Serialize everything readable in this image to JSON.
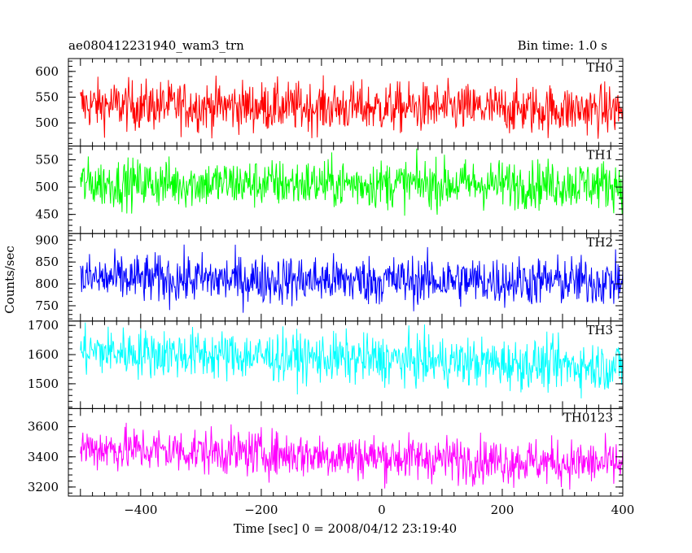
{
  "chart_data": {
    "type": "line",
    "title": "ae080412231940_wam3_trn",
    "bin_time_label": "Bin time: 1.0 s",
    "xlabel": "Time [sec] 0 = 2008/04/12 23:19:40",
    "ylabel": "Counts/sec",
    "xlim": [
      -520,
      400
    ],
    "x_ticks": [
      -400,
      -200,
      0,
      200,
      400
    ],
    "x_tick_labels": [
      "−400",
      "−200",
      "0",
      "200",
      "400"
    ],
    "x_range": [
      -500,
      400
    ],
    "bin_time": 1.0,
    "grid": false,
    "panels": [
      {
        "name": "TH0",
        "color": "#ff0000",
        "ylim": [
          455,
          625
        ],
        "y_ticks": [
          500,
          550,
          600
        ],
        "mean_start": 535,
        "mean_end": 525,
        "noise": 24
      },
      {
        "name": "TH1",
        "color": "#00ff00",
        "ylim": [
          415,
          575
        ],
        "y_ticks": [
          450,
          500,
          550
        ],
        "mean_start": 507,
        "mean_end": 505,
        "noise": 22
      },
      {
        "name": "TH2",
        "color": "#0000ff",
        "ylim": [
          715,
          915
        ],
        "y_ticks": [
          750,
          800,
          850,
          900
        ],
        "mean_start": 812,
        "mean_end": 805,
        "noise": 28
      },
      {
        "name": "TH3",
        "color": "#00ffff",
        "ylim": [
          1415,
          1715
        ],
        "y_ticks": [
          1500,
          1600,
          1700
        ],
        "mean_start": 1612,
        "mean_end": 1558,
        "noise": 42
      },
      {
        "name": "TH0123",
        "color": "#ff00ff",
        "ylim": [
          3140,
          3720
        ],
        "y_ticks": [
          3200,
          3400,
          3600
        ],
        "mean_start": 3460,
        "mean_end": 3350,
        "noise": 75
      }
    ]
  }
}
